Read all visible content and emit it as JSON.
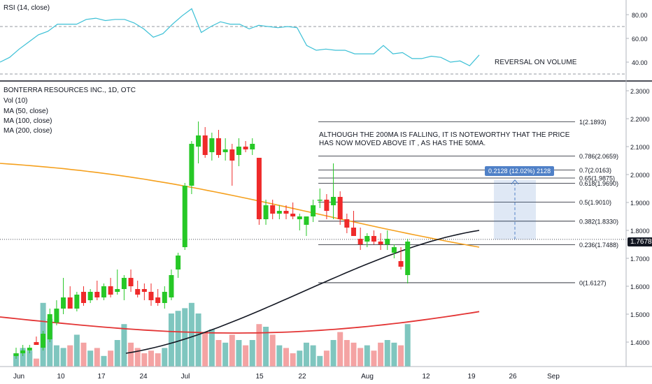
{
  "rsi_panel": {
    "label": "RSI (14, close)",
    "ticks": [
      "80.00",
      "60.00",
      "40.00"
    ],
    "annotation": "REVERSAL ON VOLUME",
    "values": [
      40,
      44,
      51,
      57,
      63,
      66,
      72,
      72,
      72,
      76,
      77,
      75,
      76,
      76,
      73,
      68,
      61,
      64,
      72,
      79,
      85,
      65,
      70,
      74,
      72,
      72,
      68,
      71,
      70,
      69,
      70,
      69,
      54,
      50,
      51,
      50,
      50,
      47,
      47,
      47,
      54,
      47,
      48,
      43,
      43,
      45,
      44,
      40,
      41,
      37,
      46
    ],
    "levels": [
      70,
      30
    ]
  },
  "main_panel": {
    "title": "BONTERRA RESOURCES INC., 1D, OTC",
    "legend": [
      "Vol (10)",
      "MA (50, close)",
      "MA (100, close)",
      "MA (200, close)"
    ],
    "annotation_line1": "ALTHOUGH THE 200MA IS FALLING, IT IS NOTEWORTHY THAT THE PRICE",
    "annotation_line2": "HAS NOW MOVED ABOVE IT , AS HAS THE 50MA.",
    "current_price": "1.7678",
    "measure_label": "0.2128 (12.02%) 2128",
    "price_ticks": [
      "2.3000",
      "2.2000",
      "2.1000",
      "2.0000",
      "1.9000",
      "1.8000",
      "1.7000",
      "1.6000",
      "1.5000",
      "1.4000"
    ],
    "fib_levels": [
      {
        "label": "1(2.1893)",
        "price": 2.1893
      },
      {
        "label": "0.786(2.0659)",
        "price": 2.0659
      },
      {
        "label": "0.7(2.0163)",
        "price": 2.0163
      },
      {
        "label": "0.65(1.9875)",
        "price": 1.9875
      },
      {
        "label": "0.618(1.9690)",
        "price": 1.969
      },
      {
        "label": "0.5(1.9010)",
        "price": 1.901
      },
      {
        "label": "0.382(1.8330)",
        "price": 1.833
      },
      {
        "label": "0.236(1.7488)",
        "price": 1.7488
      },
      {
        "label": "0(1.6127)",
        "price": 1.6127
      }
    ]
  },
  "x_axis": {
    "labels": [
      "Jun",
      "10",
      "17",
      "24",
      "Jul",
      "15",
      "22",
      "Aug",
      "12",
      "19",
      "26",
      "Sep"
    ]
  },
  "colors": {
    "up": "#26c826",
    "down": "#ef2a2a",
    "vol_up": "#7fc6bf",
    "vol_down": "#f4a3a3",
    "ma50": "#131722",
    "ma100": "#f5a01d",
    "ma200": "#e33434",
    "rsi": "#3cc0d6",
    "measure": "#4f80c7"
  },
  "chart_data": {
    "type": "candlestick",
    "price_range": [
      1.35,
      2.3
    ],
    "candles": [
      {
        "o": 1.35,
        "h": 1.38,
        "l": 1.34,
        "c": 1.36,
        "v": 0.5
      },
      {
        "o": 1.36,
        "h": 1.39,
        "l": 1.35,
        "c": 1.37,
        "v": 0.7
      },
      {
        "o": 1.37,
        "h": 1.39,
        "l": 1.36,
        "c": 1.38,
        "v": 0.6
      },
      {
        "o": 1.4,
        "h": 1.42,
        "l": 1.39,
        "c": 1.39,
        "v": 0.3
      },
      {
        "o": 1.38,
        "h": 1.44,
        "l": 1.37,
        "c": 1.43,
        "v": 2.4
      },
      {
        "o": 1.41,
        "h": 1.52,
        "l": 1.4,
        "c": 1.5,
        "v": 1.8
      },
      {
        "o": 1.47,
        "h": 1.55,
        "l": 1.46,
        "c": 1.52,
        "v": 0.8
      },
      {
        "o": 1.52,
        "h": 1.63,
        "l": 1.5,
        "c": 1.56,
        "v": 0.7
      },
      {
        "o": 1.56,
        "h": 1.6,
        "l": 1.52,
        "c": 1.52,
        "v": 0.8
      },
      {
        "o": 1.52,
        "h": 1.58,
        "l": 1.51,
        "c": 1.57,
        "v": 1.2
      },
      {
        "o": 1.58,
        "h": 1.6,
        "l": 1.53,
        "c": 1.54,
        "v": 0.9
      },
      {
        "o": 1.55,
        "h": 1.59,
        "l": 1.54,
        "c": 1.58,
        "v": 0.6
      },
      {
        "o": 1.58,
        "h": 1.62,
        "l": 1.55,
        "c": 1.56,
        "v": 0.7
      },
      {
        "o": 1.56,
        "h": 1.61,
        "l": 1.55,
        "c": 1.6,
        "v": 0.4
      },
      {
        "o": 1.6,
        "h": 1.63,
        "l": 1.56,
        "c": 1.57,
        "v": 0.6
      },
      {
        "o": 1.58,
        "h": 1.66,
        "l": 1.57,
        "c": 1.59,
        "v": 1.0
      },
      {
        "o": 1.59,
        "h": 1.64,
        "l": 1.55,
        "c": 1.63,
        "v": 1.6
      },
      {
        "o": 1.63,
        "h": 1.66,
        "l": 1.58,
        "c": 1.6,
        "v": 0.9
      },
      {
        "o": 1.59,
        "h": 1.62,
        "l": 1.56,
        "c": 1.57,
        "v": 0.7
      },
      {
        "o": 1.59,
        "h": 1.61,
        "l": 1.55,
        "c": 1.58,
        "v": 0.5
      },
      {
        "o": 1.58,
        "h": 1.61,
        "l": 1.53,
        "c": 1.55,
        "v": 0.6
      },
      {
        "o": 1.56,
        "h": 1.59,
        "l": 1.53,
        "c": 1.54,
        "v": 0.5
      },
      {
        "o": 1.54,
        "h": 1.6,
        "l": 1.52,
        "c": 1.58,
        "v": 0.7
      },
      {
        "o": 1.56,
        "h": 1.66,
        "l": 1.55,
        "c": 1.64,
        "v": 2.0
      },
      {
        "o": 1.66,
        "h": 1.72,
        "l": 1.63,
        "c": 1.71,
        "v": 2.1
      },
      {
        "o": 1.74,
        "h": 1.97,
        "l": 1.73,
        "c": 1.96,
        "v": 2.2
      },
      {
        "o": 1.96,
        "h": 2.12,
        "l": 1.93,
        "c": 2.11,
        "v": 2.4
      },
      {
        "o": 2.1,
        "h": 2.19,
        "l": 2.04,
        "c": 2.14,
        "v": 2.0
      },
      {
        "o": 2.14,
        "h": 2.17,
        "l": 2.06,
        "c": 2.07,
        "v": 1.3
      },
      {
        "o": 2.08,
        "h": 2.15,
        "l": 2.05,
        "c": 2.13,
        "v": 1.4
      },
      {
        "o": 2.13,
        "h": 2.16,
        "l": 2.06,
        "c": 2.07,
        "v": 1.0
      },
      {
        "o": 2.08,
        "h": 2.13,
        "l": 2.05,
        "c": 2.09,
        "v": 0.9
      },
      {
        "o": 2.09,
        "h": 2.11,
        "l": 1.96,
        "c": 2.05,
        "v": 1.2
      },
      {
        "o": 2.07,
        "h": 2.13,
        "l": 2.03,
        "c": 2.1,
        "v": 1.0
      },
      {
        "o": 2.1,
        "h": 2.12,
        "l": 2.08,
        "c": 2.09,
        "v": 0.8
      },
      {
        "o": 2.09,
        "h": 2.13,
        "l": 2.07,
        "c": 2.11,
        "v": 1.0
      },
      {
        "o": 2.06,
        "h": 2.06,
        "l": 1.82,
        "c": 1.84,
        "v": 1.6
      },
      {
        "o": 1.84,
        "h": 1.91,
        "l": 1.82,
        "c": 1.89,
        "v": 1.5
      },
      {
        "o": 1.89,
        "h": 1.91,
        "l": 1.84,
        "c": 1.86,
        "v": 1.2
      },
      {
        "o": 1.86,
        "h": 1.89,
        "l": 1.84,
        "c": 1.87,
        "v": 0.8
      },
      {
        "o": 1.87,
        "h": 1.89,
        "l": 1.84,
        "c": 1.86,
        "v": 0.7
      },
      {
        "o": 1.86,
        "h": 1.9,
        "l": 1.84,
        "c": 1.85,
        "v": 0.5
      },
      {
        "o": 1.84,
        "h": 1.86,
        "l": 1.8,
        "c": 1.85,
        "v": 0.6
      },
      {
        "o": 1.82,
        "h": 1.85,
        "l": 1.78,
        "c": 1.85,
        "v": 0.9
      },
      {
        "o": 1.85,
        "h": 1.91,
        "l": 1.83,
        "c": 1.89,
        "v": 0.8
      },
      {
        "o": 1.91,
        "h": 1.95,
        "l": 1.88,
        "c": 1.91,
        "v": 0.4
      },
      {
        "o": 1.91,
        "h": 1.93,
        "l": 1.84,
        "c": 1.87,
        "v": 0.6
      },
      {
        "o": 1.89,
        "h": 2.04,
        "l": 1.84,
        "c": 1.92,
        "v": 1.0
      },
      {
        "o": 1.92,
        "h": 1.94,
        "l": 1.82,
        "c": 1.84,
        "v": 1.3
      },
      {
        "o": 1.84,
        "h": 1.86,
        "l": 1.79,
        "c": 1.81,
        "v": 1.0
      },
      {
        "o": 1.81,
        "h": 1.87,
        "l": 1.78,
        "c": 1.78,
        "v": 0.9
      },
      {
        "o": 1.77,
        "h": 1.81,
        "l": 1.73,
        "c": 1.75,
        "v": 0.7
      },
      {
        "o": 1.76,
        "h": 1.79,
        "l": 1.74,
        "c": 1.78,
        "v": 0.8
      },
      {
        "o": 1.78,
        "h": 1.8,
        "l": 1.75,
        "c": 1.76,
        "v": 0.6
      },
      {
        "o": 1.76,
        "h": 1.79,
        "l": 1.73,
        "c": 1.75,
        "v": 0.9
      },
      {
        "o": 1.75,
        "h": 1.8,
        "l": 1.73,
        "c": 1.77,
        "v": 1.0
      },
      {
        "o": 1.72,
        "h": 1.75,
        "l": 1.7,
        "c": 1.74,
        "v": 0.9
      },
      {
        "o": 1.69,
        "h": 1.74,
        "l": 1.66,
        "c": 1.67,
        "v": 0.8
      },
      {
        "o": 1.64,
        "h": 1.77,
        "l": 1.61,
        "c": 1.76,
        "v": 1.6
      }
    ],
    "ma100": {
      "start": 2.04,
      "end": 1.74
    },
    "ma200": {
      "start": 1.49,
      "end": 1.55
    },
    "ma50": {
      "start_index": 26,
      "start": 1.36,
      "end": 1.8
    }
  }
}
